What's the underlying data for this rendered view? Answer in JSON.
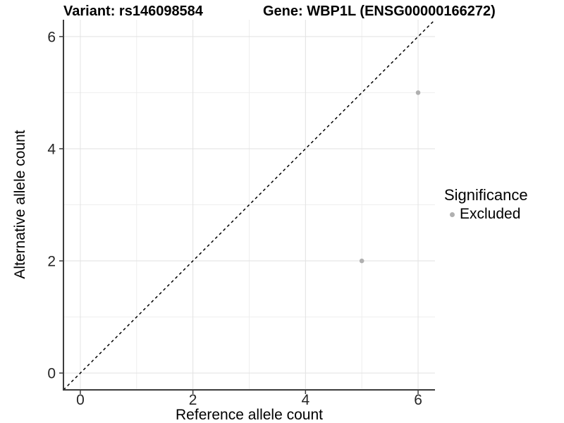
{
  "chart_data": {
    "type": "scatter",
    "title_left": "Variant: rs146098584",
    "title_right": "Gene: WBP1L (ENSG00000166272)",
    "xlabel": "Reference allele count",
    "ylabel": "Alternative allele count",
    "xlim": [
      0,
      6
    ],
    "ylim": [
      0,
      6
    ],
    "x_major_ticks": [
      0,
      2,
      4,
      6
    ],
    "x_minor_ticks": [
      1,
      3,
      5
    ],
    "y_major_ticks": [
      0,
      2,
      4,
      6
    ],
    "y_minor_ticks": [
      1,
      3,
      5
    ],
    "axis_expansion_fraction": 0.05,
    "grid": "on",
    "legend_position": "right",
    "series": [
      {
        "name": "Excluded",
        "color": "#b0b0b0",
        "marker": "circle",
        "points": [
          {
            "x": 6,
            "y": 5
          },
          {
            "x": 5,
            "y": 2
          }
        ]
      }
    ],
    "reference_line": {
      "kind": "identity",
      "slope": 1,
      "intercept": 0,
      "style": "dashed",
      "color": "#000000"
    },
    "legend": {
      "title": "Significance",
      "items": [
        {
          "label": "Excluded",
          "color": "#b0b0b0"
        }
      ]
    }
  },
  "style": {
    "background": "#ffffff",
    "grid_major_color": "#e2e2e2",
    "grid_minor_color": "#eeeeee",
    "axis_line_color": "#3c3c3c",
    "tick_label_color": "#262626",
    "title_color": "#000000"
  }
}
